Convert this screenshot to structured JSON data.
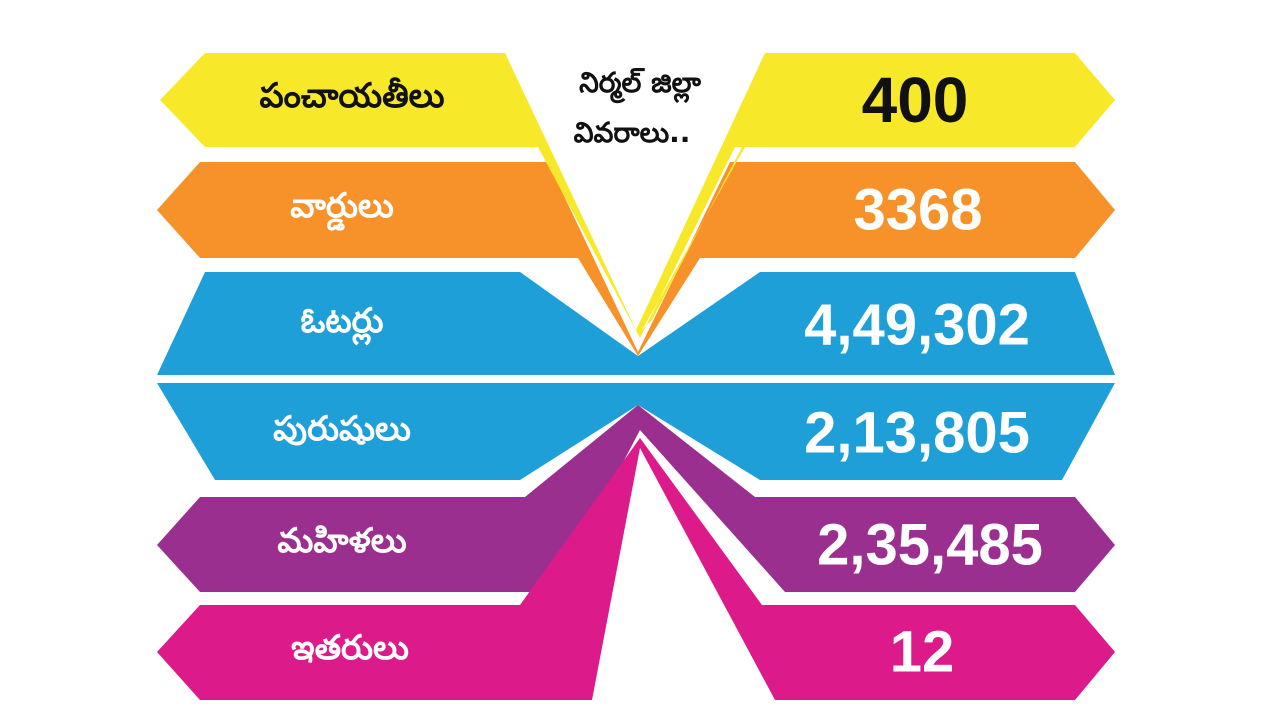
{
  "title": {
    "line1": "నిర్మల్ జిల్లా",
    "line2": "వివరాలు.."
  },
  "rows": [
    {
      "label": "పంచాయతీలు",
      "value": "400",
      "color": "#f7e92a",
      "text_color": "#111111"
    },
    {
      "label": "వార్డులు",
      "value": "3368",
      "color": "#f7922a",
      "text_color": "#ffffff"
    },
    {
      "label": "ఓటర్లు",
      "value": "4,49,302",
      "color": "#1e9fd8",
      "text_color": "#ffffff"
    },
    {
      "label": "పురుషులు",
      "value": "2,13,805",
      "color": "#1e9fd8",
      "text_color": "#ffffff"
    },
    {
      "label": "మహిళలు",
      "value": "2,35,485",
      "color": "#9b2f8f",
      "text_color": "#ffffff"
    },
    {
      "label": "ఇతరులు",
      "value": "12",
      "color": "#dd1a8a",
      "text_color": "#ffffff"
    }
  ]
}
